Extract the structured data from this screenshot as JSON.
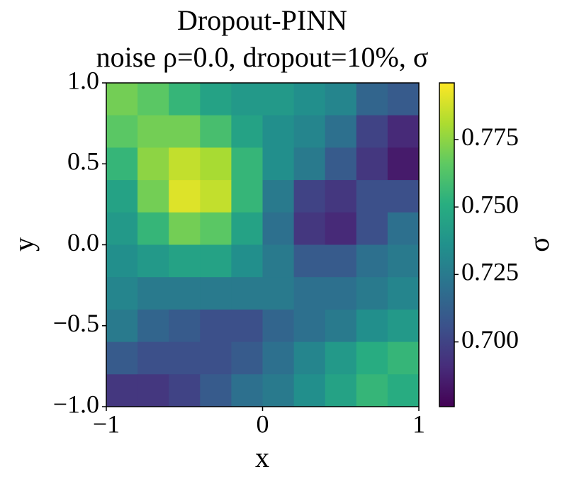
{
  "chart_data": {
    "type": "heatmap",
    "title": "Dropout-PINN",
    "subtitle": "noise ρ=0.0, dropout=10%, σ",
    "xlabel": "x",
    "ylabel": "y",
    "colorbar_label": "σ",
    "colormap": "viridis",
    "xlim": [
      -1,
      1
    ],
    "ylim": [
      -1,
      1
    ],
    "xticks": [
      {
        "value": -1,
        "label": "−1"
      },
      0,
      1
    ],
    "yticks": [
      {
        "value": -1,
        "label": "−1.0"
      },
      {
        "value": -0.5,
        "label": "−0.5"
      },
      {
        "value": 0,
        "label": "0.0"
      },
      0.5,
      {
        "value": 1,
        "label": "1.0"
      }
    ],
    "clim": [
      0.676,
      0.796
    ],
    "cticks": [
      {
        "value": 0.7,
        "label": "0.700"
      },
      0.725,
      {
        "value": 0.75,
        "label": "0.750"
      },
      0.775
    ],
    "z": [
      [
        0.77,
        0.765,
        0.755,
        0.745,
        0.74,
        0.74,
        0.735,
        0.73,
        0.715,
        0.71
      ],
      [
        0.765,
        0.77,
        0.77,
        0.76,
        0.745,
        0.735,
        0.73,
        0.72,
        0.7,
        0.69
      ],
      [
        0.755,
        0.775,
        0.785,
        0.78,
        0.755,
        0.735,
        0.725,
        0.71,
        0.695,
        0.685
      ],
      [
        0.745,
        0.77,
        0.79,
        0.785,
        0.755,
        0.725,
        0.7,
        0.695,
        0.705,
        0.705
      ],
      [
        0.74,
        0.755,
        0.77,
        0.765,
        0.745,
        0.72,
        0.695,
        0.69,
        0.705,
        0.72
      ],
      [
        0.735,
        0.74,
        0.745,
        0.745,
        0.735,
        0.725,
        0.71,
        0.71,
        0.72,
        0.725
      ],
      [
        0.73,
        0.725,
        0.725,
        0.725,
        0.725,
        0.725,
        0.72,
        0.72,
        0.725,
        0.73
      ],
      [
        0.725,
        0.715,
        0.71,
        0.705,
        0.705,
        0.715,
        0.72,
        0.725,
        0.735,
        0.74
      ],
      [
        0.71,
        0.705,
        0.705,
        0.705,
        0.71,
        0.72,
        0.73,
        0.74,
        0.75,
        0.755
      ],
      [
        0.695,
        0.695,
        0.7,
        0.71,
        0.72,
        0.725,
        0.735,
        0.745,
        0.755,
        0.75
      ]
    ]
  }
}
